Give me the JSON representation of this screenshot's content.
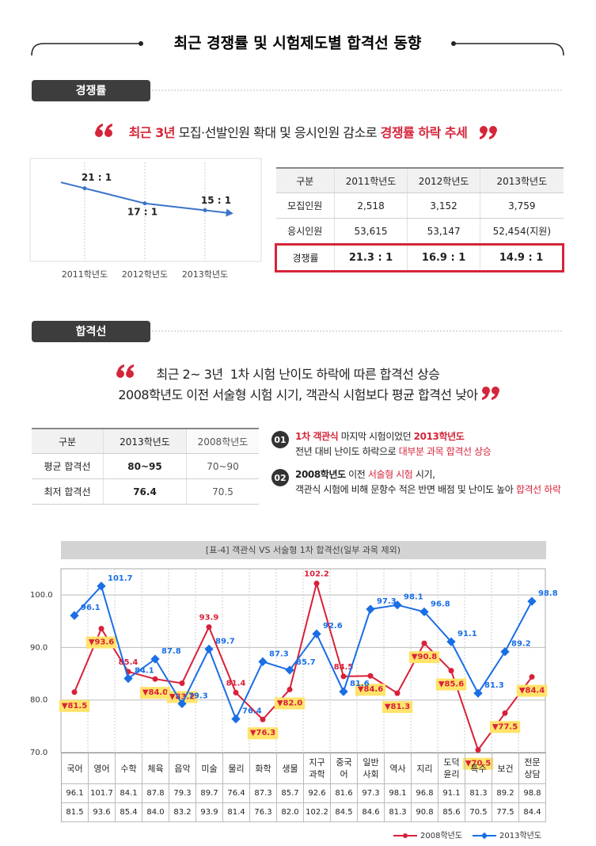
{
  "header": {
    "title": "최근 경쟁률 및 시험제도별 합격선 동향"
  },
  "competition": {
    "tab": "경쟁률",
    "quote": [
      "최근 3년",
      " 모집·선발인원 확대 및 응시인원 감소로 ",
      "경쟁률 하락 추세"
    ],
    "table": {
      "header": [
        "구분",
        "2011학년도",
        "2012학년도",
        "2013학년도"
      ],
      "rows": [
        [
          "모집인원",
          "2,518",
          "3,152",
          "3,759"
        ],
        [
          "응시인원",
          "53,615",
          "53,147",
          "52,454(지원)"
        ],
        [
          "경쟁률",
          "21.3 : 1",
          "16.9 : 1",
          "14.9 : 1"
        ]
      ]
    }
  },
  "passing": {
    "tab": "합격선",
    "quote": [
      "최근 2~ 3년  1차 시험 난이도 하락에 따른 합격선 상승",
      "2008학년도 이전 서술형 시험 시기, 객관식 시험보다 평균 합격선 낮아"
    ],
    "table": {
      "header": [
        "구분",
        "2013학년도",
        "2008학년도"
      ],
      "rows": [
        [
          "평균 합격선",
          "80~95",
          "70~90"
        ],
        [
          "최저 합격선",
          "76.4",
          "70.5"
        ]
      ]
    },
    "notes": [
      {
        "number": "01",
        "lines": [
          [
            "1차 객관식",
            " 마지막 시험이었던 ",
            "2013학년도"
          ],
          [
            "전년 대비 난이도 하락으로 ",
            "대부분 과목 합격선 상승"
          ]
        ]
      },
      {
        "number": "02",
        "lines": [
          [
            "2008학년도",
            " 이전 ",
            "서술형 시험",
            " 시기,"
          ],
          [
            "객관식 시험에 비해 문항수 적은 반면 배점 및 난이도 높아 ",
            "합격선 하락"
          ]
        ]
      }
    ],
    "score_table": {
      "rows": [
        [
          "96.1",
          "101.7",
          "84.1",
          "87.8",
          "79.3",
          "89.7",
          "76.4",
          "87.3",
          "85.7",
          "92.6",
          "81.6",
          "97.3",
          "98.1",
          "96.8",
          "91.1",
          "81.3",
          "89.2",
          "98.8"
        ],
        [
          "81.5",
          "93.6",
          "85.4",
          "84.0",
          "83.2",
          "93.9",
          "81.4",
          "76.3",
          "82.0",
          "102.2",
          "84.5",
          "84.6",
          "81.3",
          "90.8",
          "85.6",
          "70.5",
          "77.5",
          "84.4"
        ]
      ]
    }
  },
  "chart_data": [
    {
      "type": "line",
      "categories": [
        "2011학년도",
        "2012학년도",
        "2013학년도"
      ],
      "values": [
        21.3,
        16.9,
        14.9
      ],
      "value_labels": [
        "21 : 1",
        "17 : 1",
        "15 : 1"
      ],
      "color": "#3b73c8",
      "ylim": [
        0,
        30
      ]
    },
    {
      "type": "line",
      "title": "[표-4] 객관식 VS 서술형 1차 합격선(일부 과목 제외)",
      "categories": [
        "국어",
        "영어",
        "수학",
        "체육",
        "음악",
        "미술",
        "물리",
        "화학",
        "생물",
        "지구\n과학",
        "중국\n어",
        "일반\n사회",
        "역사",
        "지리",
        "도덕\n윤리",
        "특수",
        "보건",
        "전문\n상담"
      ],
      "series": [
        {
          "name": "2008학년도",
          "color": "#d8203a",
          "marker": "circle",
          "values": [
            81.5,
            93.6,
            85.4,
            84.0,
            83.2,
            93.9,
            81.4,
            76.3,
            82.0,
            102.2,
            84.5,
            84.6,
            81.3,
            90.8,
            85.6,
            70.5,
            77.5,
            84.4
          ],
          "value_labels": [
            "▼81.5",
            "▼93.6",
            "85.4",
            "▼84.0",
            "▼83.2",
            "93.9",
            "81.4",
            "▼76.3",
            "▼82.0",
            "102.2",
            "84.5",
            "▼84.6",
            "▼81.3",
            "▼90.8",
            "▼85.6",
            "▼70.5",
            "▼77.5",
            "▼84.4"
          ]
        },
        {
          "name": "2013학년도",
          "color": "#1a6ee6",
          "marker": "diamond",
          "values": [
            96.1,
            101.7,
            84.1,
            87.8,
            79.3,
            89.7,
            76.4,
            87.3,
            85.7,
            92.6,
            81.6,
            97.3,
            98.1,
            96.8,
            91.1,
            81.3,
            89.2,
            98.8
          ]
        }
      ],
      "ylim": [
        70,
        105
      ],
      "yticks": [
        {
          "value": 70,
          "label": "70.0"
        },
        {
          "value": 80,
          "label": "80.0"
        },
        {
          "value": 90,
          "label": "90.0"
        },
        {
          "value": 100,
          "label": "100.0"
        }
      ],
      "grid": true,
      "legend": "bottom-right"
    }
  ]
}
